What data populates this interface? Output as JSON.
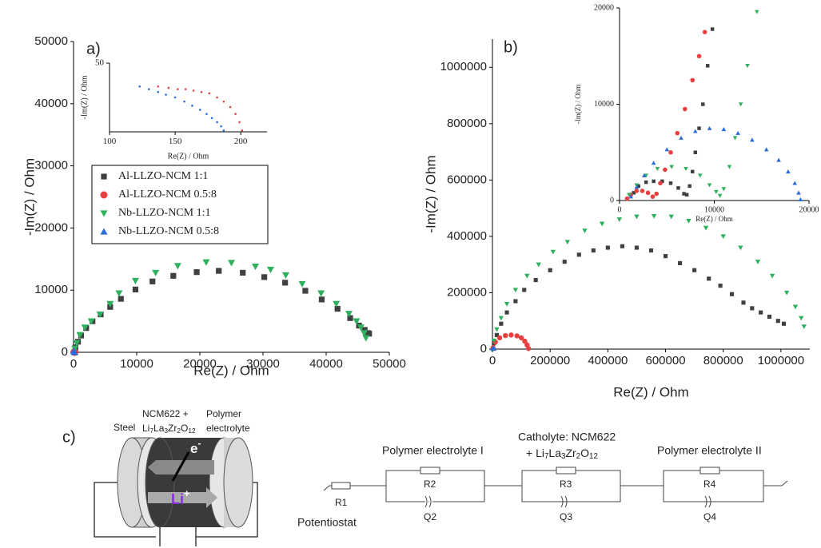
{
  "chart_data": [
    {
      "type": "scatter",
      "label": "a)",
      "xlabel": "Re(Z) / Ohm",
      "ylabel": "-Im(Z) / Ohm",
      "xlim": [
        0,
        50000
      ],
      "ylim": [
        0,
        50000
      ],
      "xticks": [
        0,
        10000,
        20000,
        30000,
        40000,
        50000
      ],
      "yticks": [
        0,
        10000,
        20000,
        30000,
        40000,
        50000
      ],
      "legend": true,
      "series": [
        {
          "name": "Al-LLZO-NCM 1:1",
          "color": "#404040",
          "marker": "square",
          "x": [
            300,
            700,
            1200,
            2000,
            3000,
            4300,
            5800,
            7500,
            9800,
            12500,
            15800,
            19500,
            23000,
            26800,
            30200,
            33500,
            36700,
            39300,
            41800,
            43800,
            45200,
            46100,
            46600,
            46800
          ],
          "values": [
            800,
            1700,
            2700,
            3900,
            5000,
            6100,
            7300,
            8600,
            10100,
            11400,
            12300,
            12900,
            13100,
            12800,
            12100,
            11200,
            9900,
            8500,
            7000,
            5500,
            4300,
            3600,
            3100,
            3000
          ]
        },
        {
          "name": "Al-LLZO-NCM 0.5:8",
          "color": "#e84040",
          "marker": "circle",
          "x": [
            80,
            120,
            160,
            200
          ],
          "values": [
            40,
            30,
            20,
            0
          ]
        },
        {
          "name": "Nb-LLZO-NCM 1:1",
          "color": "#2eb05e",
          "marker": "triangle-down",
          "x": [
            200,
            500,
            1000,
            1800,
            2800,
            4200,
            5800,
            7200,
            9800,
            13000,
            16500,
            21000,
            25000,
            28800,
            31200,
            33600,
            36200,
            39200,
            41600,
            43600,
            44800,
            45500,
            46000,
            46300
          ],
          "values": [
            600,
            1500,
            2800,
            4000,
            5000,
            6100,
            7800,
            9500,
            11500,
            12800,
            13900,
            14500,
            14400,
            13800,
            13300,
            12400,
            11000,
            9500,
            7800,
            6200,
            5000,
            4000,
            3100,
            2300
          ]
        },
        {
          "name": "Nb-LLZO-NCM 0.5:8",
          "color": "#2a6cd8",
          "marker": "triangle-up",
          "x": [
            60,
            100,
            140,
            180
          ],
          "values": [
            200,
            150,
            80,
            0
          ]
        }
      ]
    },
    {
      "type": "scatter",
      "xlabel": "Re(Z) / Ohm",
      "ylabel": "-Im(Z) / Ohm",
      "xlim": [
        100,
        220
      ],
      "ylim": [
        0,
        50
      ],
      "xticks": [
        100,
        150,
        200
      ],
      "yticks": [
        50
      ],
      "series": [
        {
          "name": "Al-LLZO-NCM 0.5:8",
          "color": "#e84040",
          "marker": "dot",
          "x": [
            137,
            145,
            152,
            158,
            164,
            170,
            176,
            182,
            187,
            192,
            196,
            199,
            201
          ],
          "values": [
            33,
            32,
            31,
            31,
            30,
            29,
            28,
            25,
            22,
            18,
            13,
            7,
            1
          ]
        },
        {
          "name": "Nb-LLZO-NCM 0.5:8",
          "color": "#2a6cd8",
          "marker": "dot",
          "x": [
            123,
            130,
            137,
            143,
            150,
            157,
            163,
            169,
            174,
            178,
            182,
            185,
            187
          ],
          "values": [
            33,
            31,
            29,
            27,
            25,
            22,
            19,
            16,
            13,
            10,
            7,
            4,
            1
          ]
        }
      ]
    },
    {
      "type": "scatter",
      "label": "b)",
      "xlabel": "Re(Z) / Ohm",
      "ylabel": "-Im(Z) / Ohm",
      "xlim": [
        0,
        1100000
      ],
      "ylim": [
        0,
        1100000
      ],
      "xticks": [
        0,
        200000,
        400000,
        600000,
        800000,
        1000000
      ],
      "yticks": [
        0,
        200000,
        400000,
        600000,
        800000,
        1000000
      ],
      "series": [
        {
          "name": "Al-LLZO-NCM 1:1",
          "color": "#404040",
          "marker": "square",
          "x": [
            5000,
            15000,
            30000,
            50000,
            80000,
            110000,
            150000,
            200000,
            250000,
            300000,
            350000,
            400000,
            450000,
            500000,
            550000,
            600000,
            650000,
            700000,
            750000,
            790000,
            830000,
            870000,
            900000,
            930000,
            960000,
            990000,
            1010000
          ],
          "values": [
            20000,
            50000,
            90000,
            130000,
            170000,
            210000,
            245000,
            280000,
            310000,
            335000,
            350000,
            360000,
            365000,
            360000,
            350000,
            330000,
            305000,
            280000,
            250000,
            225000,
            195000,
            165000,
            145000,
            130000,
            115000,
            100000,
            90000
          ]
        },
        {
          "name": "Al-LLZO-NCM 0.5:8",
          "color": "#e84040",
          "marker": "circle",
          "x": [
            2000,
            10000,
            25000,
            45000,
            65000,
            85000,
            100000,
            112000,
            120000,
            125000
          ],
          "values": [
            5000,
            25000,
            40000,
            48000,
            50000,
            47000,
            40000,
            28000,
            15000,
            2000
          ]
        },
        {
          "name": "Nb-LLZO-NCM 1:1",
          "color": "#2eb05e",
          "marker": "triangle-down",
          "x": [
            5000,
            15000,
            30000,
            50000,
            80000,
            120000,
            160000,
            210000,
            260000,
            320000,
            380000,
            440000,
            500000,
            560000,
            620000,
            680000,
            740000,
            800000,
            860000,
            920000,
            970000,
            1020000,
            1050000,
            1070000,
            1080000
          ],
          "values": [
            30000,
            70000,
            110000,
            160000,
            210000,
            260000,
            300000,
            345000,
            380000,
            420000,
            445000,
            460000,
            470000,
            472000,
            470000,
            455000,
            430000,
            400000,
            360000,
            310000,
            260000,
            200000,
            150000,
            110000,
            80000
          ]
        },
        {
          "name": "Nb-LLZO-NCM 0.5:8",
          "color": "#2a6cd8",
          "marker": "triangle-up",
          "x": [
            1000,
            3000,
            6000
          ],
          "values": [
            1000,
            3000,
            2000
          ]
        }
      ]
    },
    {
      "type": "scatter",
      "xlabel": "Re(Z) / Ohm",
      "ylabel": "-Im(Z) / Ohm",
      "xlim": [
        0,
        20000
      ],
      "ylim": [
        0,
        20000
      ],
      "xticks": [
        0,
        10000,
        20000
      ],
      "yticks": [
        0,
        10000,
        20000
      ],
      "series": [
        {
          "name": "Al-LLZO-NCM 1:1",
          "color": "#404040",
          "marker": "square",
          "x": [
            1500,
            2000,
            2800,
            3600,
            4500,
            5400,
            6200,
            6800,
            7100,
            7400,
            7700,
            8000,
            8400,
            8800,
            9300,
            9800
          ],
          "values": [
            800,
            1500,
            1900,
            2000,
            2000,
            1800,
            1300,
            700,
            600,
            1500,
            3000,
            5000,
            7500,
            10000,
            14000,
            17800
          ]
        },
        {
          "name": "Al-LLZO-NCM 0.5:8",
          "color": "#e84040",
          "marker": "circle",
          "x": [
            800,
            1200,
            1800,
            2400,
            3000,
            3500,
            3900,
            4300,
            4800,
            5400,
            6100,
            6900,
            7700,
            8400,
            9000
          ],
          "values": [
            200,
            600,
            1000,
            1000,
            800,
            400,
            700,
            1800,
            3200,
            5000,
            7000,
            9500,
            12500,
            15000,
            17500
          ]
        },
        {
          "name": "Nb-LLZO-NCM 1:1",
          "color": "#2eb05e",
          "marker": "triangle-down",
          "x": [
            1000,
            1800,
            2800,
            4000,
            5500,
            7000,
            8500,
            9500,
            10200,
            10600,
            11000,
            11600,
            12200,
            12800,
            13500,
            14500
          ],
          "values": [
            600,
            1600,
            2600,
            3300,
            3500,
            3300,
            2600,
            1600,
            900,
            500,
            1200,
            3500,
            6500,
            10000,
            14000,
            19600
          ]
        },
        {
          "name": "Nb-LLZO-NCM 0.5:8",
          "color": "#2a6cd8",
          "marker": "triangle-up",
          "x": [
            1200,
            1800,
            2600,
            3600,
            5000,
            6500,
            8000,
            9500,
            11000,
            12500,
            14000,
            15500,
            16800,
            17800,
            18500,
            18900,
            19100
          ],
          "values": [
            400,
            1400,
            2600,
            3900,
            5300,
            6500,
            7200,
            7500,
            7400,
            7000,
            6300,
            5300,
            4200,
            3000,
            1800,
            800,
            100
          ]
        }
      ]
    }
  ],
  "diagram": {
    "label": "c)",
    "cell": {
      "steel": "Steel",
      "cathode_line1": "NCM622 +",
      "cathode_formula": [
        "Li",
        "7",
        "La",
        "3",
        "Zr",
        "2",
        "O",
        "12"
      ],
      "polymer_line1": "Polymer",
      "polymer_line2": "electrolyte",
      "electron": [
        "e",
        "-"
      ],
      "ion": [
        "Li",
        "+"
      ]
    },
    "circuit": {
      "pe1": "Polymer electrolyte I",
      "catholyte_line1": "Catholyte: NCM622",
      "catholyte_formula": [
        "+ Li",
        "7",
        "La",
        "3",
        "Zr",
        "2",
        "O",
        "12"
      ],
      "pe2": "Polymer electrolyte II",
      "R1": "R1",
      "R2": "R2",
      "R3": "R3",
      "R4": "R4",
      "Q2": "Q2",
      "Q3": "Q3",
      "Q4": "Q4",
      "potentiostat": "Potentiostat"
    }
  }
}
